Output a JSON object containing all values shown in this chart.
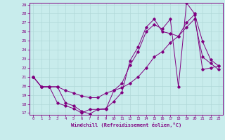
{
  "xlabel": "Windchill (Refroidissement éolien,°C)",
  "background_color": "#c8ecec",
  "grid_color": "#b0d8d8",
  "line_color": "#800080",
  "ylim": [
    17,
    29
  ],
  "xlim": [
    -0.5,
    23.5
  ],
  "yticks": [
    17,
    18,
    19,
    20,
    21,
    22,
    23,
    24,
    25,
    26,
    27,
    28,
    29
  ],
  "xticks": [
    0,
    1,
    2,
    3,
    4,
    5,
    6,
    7,
    8,
    9,
    10,
    11,
    12,
    13,
    14,
    15,
    16,
    17,
    18,
    19,
    20,
    21,
    22,
    23
  ],
  "line1_x": [
    0,
    1,
    2,
    3,
    4,
    5,
    6,
    7,
    8,
    9,
    10,
    11,
    12,
    13,
    14,
    15,
    16,
    17,
    18,
    19,
    20,
    21,
    22,
    23
  ],
  "line1_y": [
    21.0,
    19.9,
    19.9,
    19.9,
    18.1,
    17.8,
    17.2,
    16.9,
    17.4,
    17.4,
    19.5,
    20.3,
    22.3,
    23.8,
    26.0,
    26.8,
    26.3,
    27.4,
    19.9,
    29.2,
    28.0,
    24.9,
    22.9,
    22.2
  ],
  "line2_x": [
    0,
    1,
    2,
    3,
    4,
    5,
    6,
    7,
    8,
    9,
    10,
    11,
    12,
    13,
    14,
    15,
    16,
    17,
    18,
    19,
    20,
    21,
    22,
    23
  ],
  "line2_y": [
    21.0,
    19.9,
    19.9,
    18.1,
    17.8,
    17.5,
    17.0,
    17.4,
    17.4,
    17.5,
    18.3,
    19.3,
    22.8,
    24.3,
    26.5,
    27.4,
    26.0,
    25.8,
    25.5,
    26.5,
    27.4,
    23.2,
    22.5,
    21.8
  ],
  "line3_x": [
    0,
    1,
    2,
    3,
    4,
    5,
    6,
    7,
    8,
    9,
    10,
    11,
    12,
    13,
    14,
    15,
    16,
    17,
    18,
    19,
    20,
    21,
    22,
    23
  ],
  "line3_y": [
    21.0,
    19.9,
    19.9,
    19.9,
    19.5,
    19.2,
    18.9,
    18.7,
    18.7,
    19.2,
    19.5,
    19.8,
    20.3,
    21.0,
    22.0,
    23.2,
    23.8,
    24.8,
    25.5,
    27.0,
    27.9,
    21.8,
    22.0,
    22.2
  ]
}
